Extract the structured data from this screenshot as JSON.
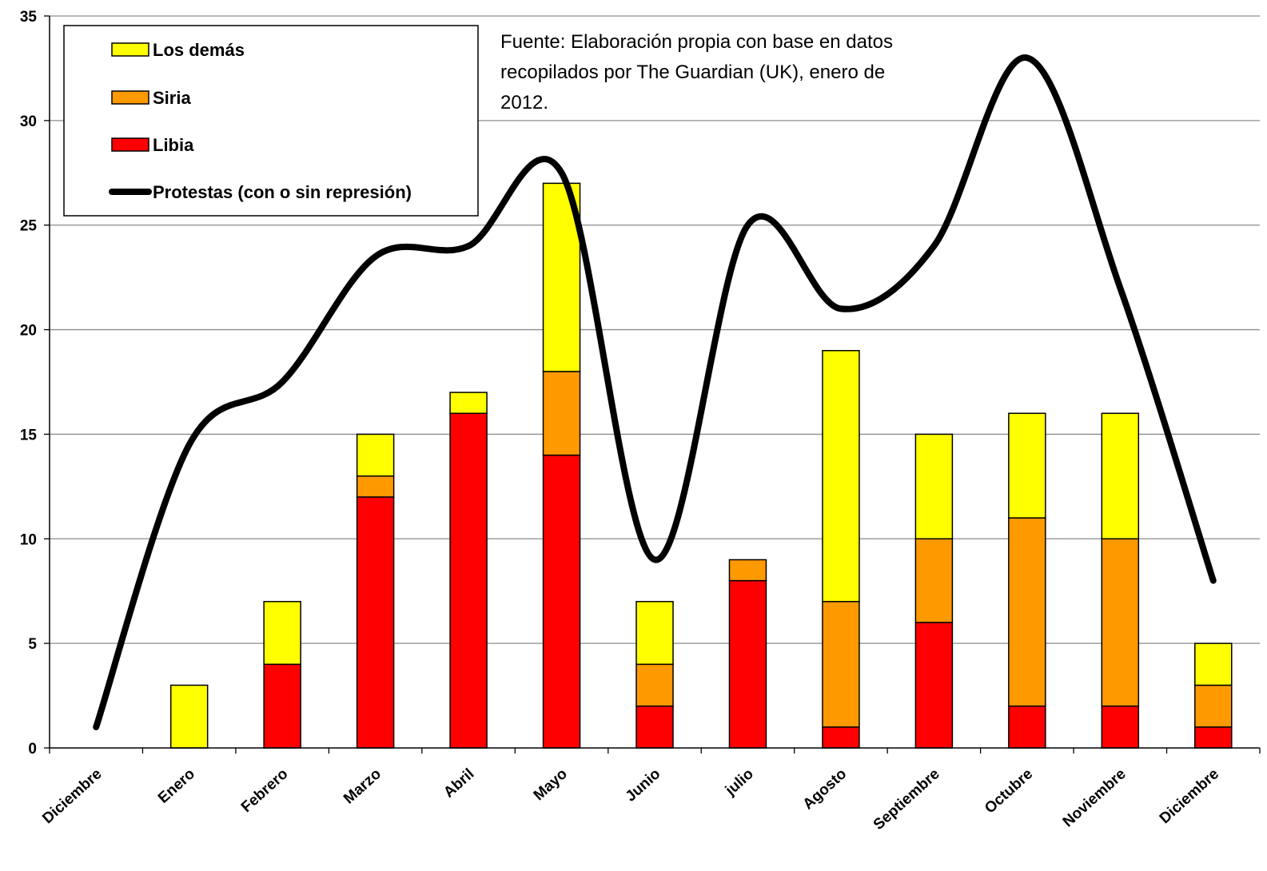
{
  "chart_data": {
    "type": "bar",
    "stacked": true,
    "categories": [
      "Diciembre",
      "Enero",
      "Febrero",
      "Marzo",
      "Abril",
      "Mayo",
      "Junio",
      "julio",
      "Agosto",
      "Septiembre",
      "Octubre",
      "Noviembre",
      "Diciembre"
    ],
    "series": [
      {
        "name": "Libia",
        "kind": "bar",
        "color": "#ff0000",
        "values": [
          0,
          0,
          4,
          12,
          16,
          14,
          2,
          8,
          1,
          6,
          2,
          2,
          1
        ]
      },
      {
        "name": "Siria",
        "kind": "bar",
        "color": "#ff9900",
        "values": [
          0,
          0,
          0,
          1,
          0,
          4,
          2,
          1,
          6,
          4,
          9,
          8,
          2
        ]
      },
      {
        "name": "Los demás",
        "kind": "bar",
        "color": "#ffff00",
        "values": [
          0,
          3,
          3,
          2,
          1,
          9,
          3,
          0,
          12,
          5,
          5,
          6,
          2
        ]
      },
      {
        "name": "Protestas (con o sin represión)",
        "kind": "line",
        "smooth": true,
        "color": "#000000",
        "values": [
          1,
          14.5,
          17.5,
          23.5,
          24,
          27.5,
          9,
          25,
          21,
          24,
          33,
          22,
          8
        ]
      }
    ],
    "legend_order": [
      "Los demás",
      "Siria",
      "Libia",
      "Protestas (con o sin represión)"
    ],
    "ylim": [
      0,
      35
    ],
    "yticks": [
      "0",
      "5",
      "10",
      "15",
      "20",
      "25",
      "30",
      "35"
    ],
    "grid": true,
    "legend_position": "top-left",
    "annotation": {
      "lines": [
        "Fuente: Elaboración propia con base en datos",
        "recopilados por The Guardian (UK), enero de",
        "2012."
      ]
    },
    "title": "",
    "xlabel": "",
    "ylabel": ""
  }
}
